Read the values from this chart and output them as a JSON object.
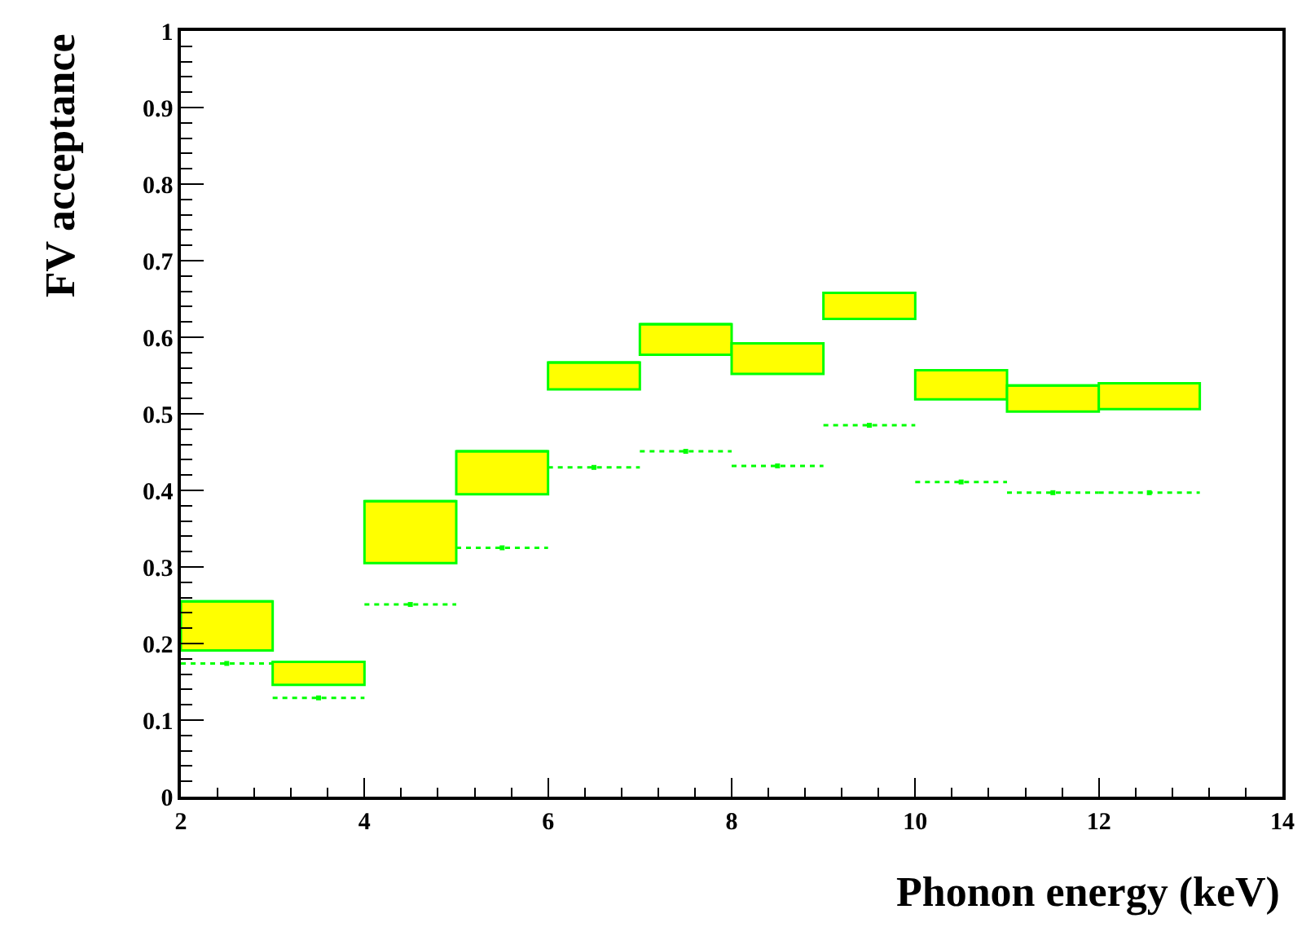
{
  "chart_data": {
    "type": "bar",
    "xlabel": "Phonon energy (keV)",
    "ylabel": "FV acceptance",
    "x": [
      2.5,
      3.5,
      4.5,
      5.5,
      6.5,
      7.5,
      8.5,
      9.5,
      10.5,
      11.5,
      12.55
    ],
    "series": [
      {
        "color": "#ffff00",
        "base": [
          0.191,
          0.146,
          0.305,
          0.395,
          0.532,
          0.577,
          0.552,
          0.624,
          0.519,
          0.503,
          0.506
        ],
        "values": [
          0.064,
          0.03,
          0.081,
          0.056,
          0.035,
          0.04,
          0.04,
          0.034,
          0.038,
          0.034,
          0.034
        ],
        "xerrors": [
          0.5,
          0.5,
          0.5,
          0.5,
          0.5,
          0.5,
          0.5,
          0.5,
          0.5,
          0.5,
          0.55
        ]
      },
      {
        "type": "scatter",
        "color": "#00ff00",
        "marker": "square",
        "line_style": "dotted",
        "values": [
          0.174,
          0.129,
          0.251,
          0.325,
          0.43,
          0.451,
          0.432,
          0.485,
          0.411,
          0.397,
          0.397
        ],
        "xerrors": [
          0.5,
          0.5,
          0.5,
          0.5,
          0.5,
          0.5,
          0.5,
          0.5,
          0.5,
          0.5,
          0.55
        ]
      }
    ],
    "xlim": [
      2,
      14
    ],
    "xticks": [
      2,
      4,
      6,
      8,
      10,
      12,
      14
    ],
    "ylim": [
      0,
      1
    ],
    "yticks": [
      0,
      0.1,
      0.2,
      0.3,
      0.4,
      0.5,
      0.6,
      0.7,
      0.8,
      0.9,
      1
    ],
    "legend": false
  }
}
